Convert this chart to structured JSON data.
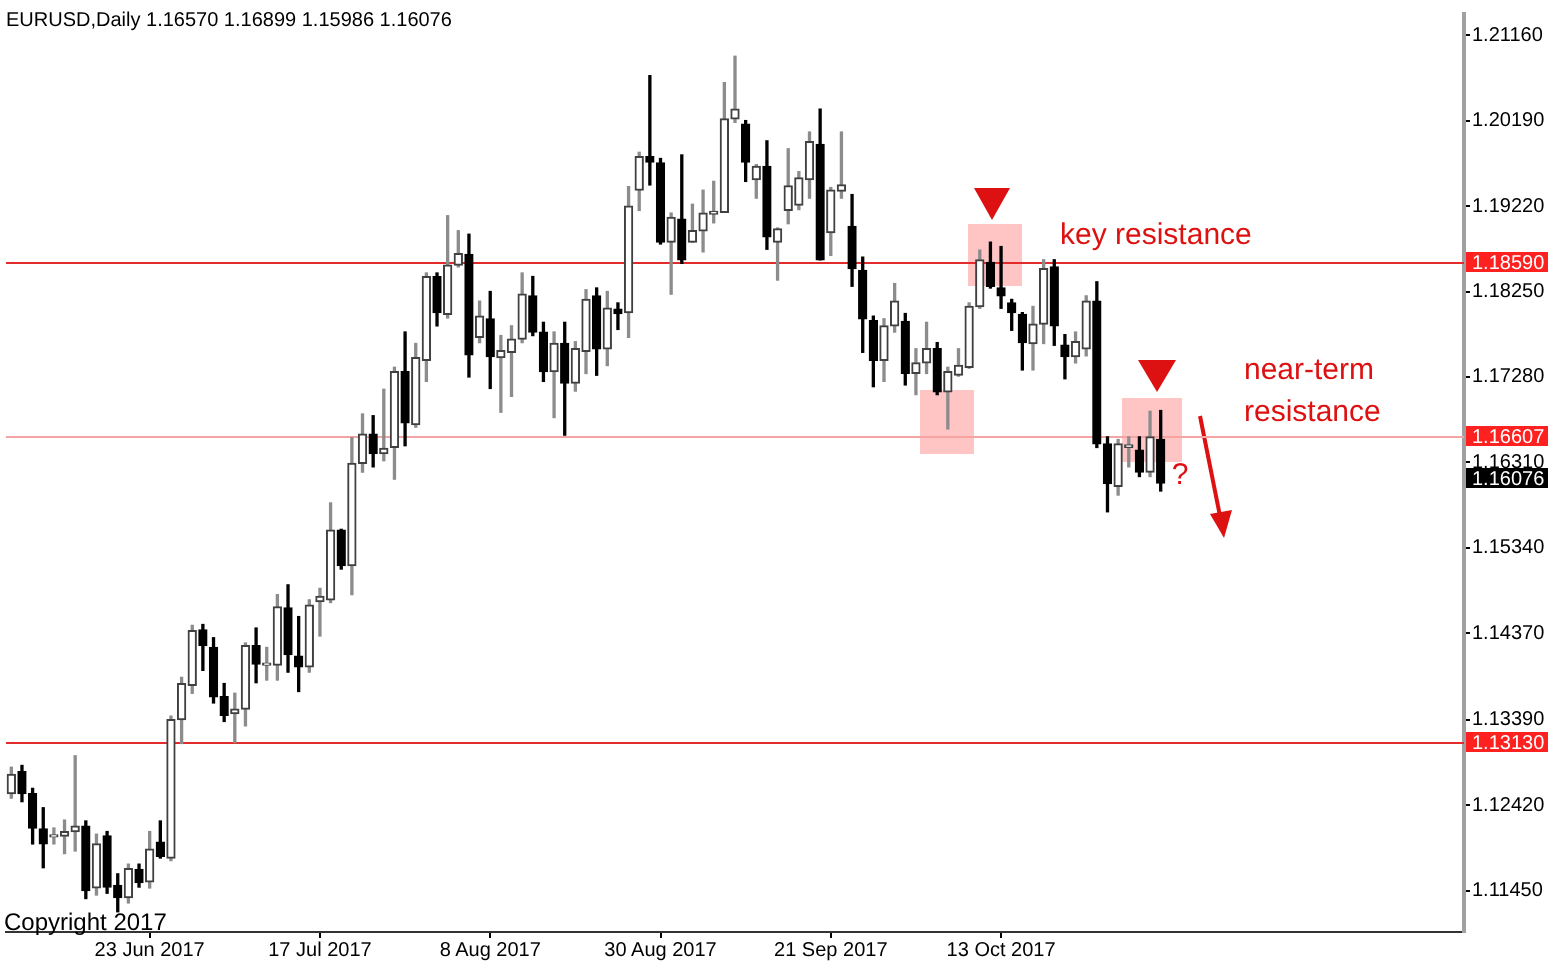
{
  "chart_data": {
    "type": "candlestick",
    "title": "EURUSD,Daily 1.16570 1.16899 1.15986 1.16076",
    "categories": [
      null,
      null,
      null,
      null,
      null,
      null,
      null,
      null,
      null,
      null,
      null,
      null,
      null,
      "23 Jun 2017",
      null,
      null,
      null,
      null,
      null,
      null,
      null,
      null,
      null,
      null,
      null,
      null,
      null,
      null,
      null,
      "17 Jul 2017",
      null,
      null,
      null,
      null,
      null,
      null,
      null,
      null,
      null,
      null,
      null,
      null,
      null,
      null,
      null,
      "8 Aug 2017",
      null,
      null,
      null,
      null,
      null,
      null,
      null,
      null,
      null,
      null,
      null,
      null,
      null,
      null,
      null,
      "30 Aug 2017",
      null,
      null,
      null,
      null,
      null,
      null,
      null,
      null,
      null,
      null,
      null,
      null,
      null,
      null,
      null,
      "21 Sep 2017",
      null,
      null,
      null,
      null,
      null,
      null,
      null,
      null,
      null,
      null,
      null,
      null,
      null,
      null,
      null,
      "13 Oct 2017",
      null,
      null,
      null,
      null,
      null,
      null,
      null,
      null,
      null,
      null,
      null,
      null,
      null,
      null,
      null,
      null,
      null,
      null,
      null,
      null,
      null,
      null,
      null,
      null,
      null,
      null,
      null,
      null,
      null,
      null,
      null,
      null,
      null,
      null,
      null,
      null,
      null,
      null,
      null,
      null,
      null,
      null,
      null
    ],
    "ohlc": [
      [
        1.1255,
        1.1285,
        1.125,
        1.1277
      ],
      [
        1.128,
        1.1287,
        1.1246,
        1.1255
      ],
      [
        1.1255,
        1.1261,
        1.1198,
        1.1216
      ],
      [
        1.1215,
        1.1239,
        1.1171,
        1.1198
      ],
      [
        1.1206,
        1.1216,
        1.1198,
        1.1207
      ],
      [
        1.1207,
        1.1225,
        1.1187,
        1.1212
      ],
      [
        1.1212,
        1.1298,
        1.119,
        1.1218
      ],
      [
        1.1218,
        1.1224,
        1.1136,
        1.1145
      ],
      [
        1.1148,
        1.1209,
        1.114,
        1.1198
      ],
      [
        1.1207,
        1.1212,
        1.1142,
        1.1149
      ],
      [
        1.1151,
        1.1164,
        1.1121,
        1.1137
      ],
      [
        1.1137,
        1.1175,
        1.1131,
        1.117
      ],
      [
        1.1169,
        1.1175,
        1.1149,
        1.1154
      ],
      [
        1.1155,
        1.1212,
        1.1148,
        1.1192
      ],
      [
        1.12,
        1.1224,
        1.1182,
        1.1184
      ],
      [
        1.1182,
        1.1343,
        1.1179,
        1.1339
      ],
      [
        1.1339,
        1.1387,
        1.1312,
        1.138
      ],
      [
        1.1378,
        1.1446,
        1.1369,
        1.144
      ],
      [
        1.1441,
        1.1447,
        1.1395,
        1.1423
      ],
      [
        1.1421,
        1.1432,
        1.1358,
        1.1365
      ],
      [
        1.1365,
        1.138,
        1.1337,
        1.1344
      ],
      [
        1.1346,
        1.1369,
        1.1313,
        1.1351
      ],
      [
        1.1351,
        1.1426,
        1.1332,
        1.1423
      ],
      [
        1.1423,
        1.1443,
        1.1381,
        1.1402
      ],
      [
        1.1401,
        1.1421,
        1.1384,
        1.1402
      ],
      [
        1.1401,
        1.1481,
        1.1384,
        1.1467
      ],
      [
        1.1466,
        1.1492,
        1.1393,
        1.1413
      ],
      [
        1.1411,
        1.1456,
        1.1371,
        1.1399
      ],
      [
        1.1399,
        1.1475,
        1.1393,
        1.1469
      ],
      [
        1.1473,
        1.1488,
        1.1434,
        1.1479
      ],
      [
        1.1475,
        1.1585,
        1.1472,
        1.1554
      ],
      [
        1.1554,
        1.1555,
        1.151,
        1.1514
      ],
      [
        1.1514,
        1.1659,
        1.1481,
        1.163
      ],
      [
        1.163,
        1.1686,
        1.162,
        1.1663
      ],
      [
        1.1663,
        1.1684,
        1.1626,
        1.1641
      ],
      [
        1.1641,
        1.1714,
        1.1633,
        1.1647
      ],
      [
        1.1648,
        1.1739,
        1.1612,
        1.1734
      ],
      [
        1.1734,
        1.1779,
        1.165,
        1.1676
      ],
      [
        1.1674,
        1.1766,
        1.1671,
        1.175
      ],
      [
        1.1747,
        1.1846,
        1.1723,
        1.1842
      ],
      [
        1.1842,
        1.1846,
        1.1786,
        1.1801
      ],
      [
        1.1799,
        1.1911,
        1.1795,
        1.1855
      ],
      [
        1.1855,
        1.1894,
        1.1853,
        1.1868
      ],
      [
        1.1867,
        1.189,
        1.1728,
        1.1753
      ],
      [
        1.1773,
        1.1814,
        1.1767,
        1.1797
      ],
      [
        1.1794,
        1.1825,
        1.1715,
        1.1751
      ],
      [
        1.175,
        1.1775,
        1.1688,
        1.1758
      ],
      [
        1.1756,
        1.1786,
        1.1706,
        1.1771
      ],
      [
        1.1771,
        1.1846,
        1.1767,
        1.1822
      ],
      [
        1.182,
        1.1842,
        1.1775,
        1.1779
      ],
      [
        1.1779,
        1.179,
        1.1723,
        1.1734
      ],
      [
        1.1734,
        1.1779,
        1.1682,
        1.1766
      ],
      [
        1.1766,
        1.179,
        1.1662,
        1.1721
      ],
      [
        1.1721,
        1.1768,
        1.1712,
        1.176
      ],
      [
        1.1757,
        1.1827,
        1.1732,
        1.1816
      ],
      [
        1.182,
        1.1829,
        1.173,
        1.176
      ],
      [
        1.176,
        1.1825,
        1.1741,
        1.1806
      ],
      [
        1.1805,
        1.1812,
        1.1782,
        1.18
      ],
      [
        1.1801,
        1.1944,
        1.1773,
        1.1922
      ],
      [
        1.194,
        1.1983,
        1.1917,
        1.1978
      ],
      [
        1.1978,
        1.207,
        1.1946,
        1.1972
      ],
      [
        1.1971,
        1.1976,
        1.1879,
        1.1881
      ],
      [
        1.1881,
        1.1914,
        1.1822,
        1.1909
      ],
      [
        1.1907,
        1.198,
        1.1857,
        1.1861
      ],
      [
        1.1881,
        1.1924,
        1.1881,
        1.1894
      ],
      [
        1.1894,
        1.194,
        1.187,
        1.1914
      ],
      [
        1.1913,
        1.195,
        1.1903,
        1.1916
      ],
      [
        1.1915,
        1.2062,
        1.1915,
        1.2021
      ],
      [
        1.2021,
        1.2092,
        1.2017,
        1.2032
      ],
      [
        1.2015,
        1.2019,
        1.195,
        1.1972
      ],
      [
        1.1952,
        1.1969,
        1.1931,
        1.1967
      ],
      [
        1.1967,
        1.1996,
        1.1873,
        1.1887
      ],
      [
        1.1881,
        1.1897,
        1.1838,
        1.1896
      ],
      [
        1.1917,
        1.1987,
        1.1902,
        1.1945
      ],
      [
        1.1923,
        1.1961,
        1.1918,
        1.1954
      ],
      [
        1.1952,
        1.2006,
        1.1931,
        1.1995
      ],
      [
        1.1992,
        1.2032,
        1.1861,
        1.1861
      ],
      [
        1.1892,
        1.1943,
        1.1866,
        1.194
      ],
      [
        1.1939,
        1.2006,
        1.1931,
        1.1946
      ],
      [
        1.1899,
        1.1935,
        1.1831,
        1.1851
      ],
      [
        1.1849,
        1.1864,
        1.1756,
        1.1794
      ],
      [
        1.1792,
        1.1797,
        1.1717,
        1.1747
      ],
      [
        1.1747,
        1.1794,
        1.1723,
        1.1786
      ],
      [
        1.1786,
        1.1834,
        1.1779,
        1.1814
      ],
      [
        1.1791,
        1.18,
        1.1719,
        1.1732
      ],
      [
        1.1732,
        1.176,
        1.1708,
        1.1744
      ],
      [
        1.1744,
        1.179,
        1.1732,
        1.176
      ],
      [
        1.176,
        1.1767,
        1.1708,
        1.1711
      ],
      [
        1.1711,
        1.1739,
        1.1669,
        1.1734
      ],
      [
        1.173,
        1.176,
        1.1729,
        1.1741
      ],
      [
        1.1739,
        1.1812,
        1.1738,
        1.1808
      ],
      [
        1.1808,
        1.1872,
        1.1806,
        1.1861
      ],
      [
        1.1858,
        1.1881,
        1.1829,
        1.1831
      ],
      [
        1.1829,
        1.1876,
        1.1806,
        1.182
      ],
      [
        1.1812,
        1.1816,
        1.1781,
        1.1801
      ],
      [
        1.1799,
        1.1801,
        1.1736,
        1.1767
      ],
      [
        1.1766,
        1.1808,
        1.1736,
        1.1788
      ],
      [
        1.1788,
        1.1861,
        1.1766,
        1.1851
      ],
      [
        1.1853,
        1.1861,
        1.1764,
        1.1786
      ],
      [
        1.1764,
        1.1776,
        1.1726,
        1.1751
      ],
      [
        1.1751,
        1.1779,
        1.1744,
        1.1768
      ],
      [
        1.176,
        1.182,
        1.1752,
        1.1814
      ],
      [
        1.1814,
        1.1836,
        1.1648,
        1.1652
      ],
      [
        1.1652,
        1.166,
        1.1575,
        1.1607
      ],
      [
        1.1604,
        1.1657,
        1.1594,
        1.1652
      ],
      [
        1.1648,
        1.166,
        1.1626,
        1.1651
      ],
      [
        1.1645,
        1.166,
        1.1615,
        1.162
      ],
      [
        1.162,
        1.1689,
        1.1615,
        1.166
      ],
      [
        1.1657,
        1.16899,
        1.15986,
        1.16076
      ],
      null,
      null,
      null,
      null,
      null,
      null,
      null,
      null,
      null,
      null,
      null,
      null,
      null,
      null,
      null,
      null,
      null,
      null,
      null,
      null,
      null,
      null,
      null,
      null,
      null,
      null,
      null,
      null
    ],
    "colors": [
      "#404040",
      "#000000",
      "#000000",
      "#000000",
      "#404040",
      "#404040",
      "#404040",
      "#000000",
      "#404040",
      "#000000",
      "#000000",
      "#404040",
      "#000000",
      "#404040",
      "#000000",
      "#404040",
      "#404040",
      "#404040",
      "#000000",
      "#000000",
      "#000000",
      "#404040",
      "#404040",
      "#000000",
      "#404040",
      "#404040",
      "#000000",
      "#000000",
      "#404040",
      "#404040",
      "#404040",
      "#000000",
      "#404040",
      "#404040",
      "#000000",
      "#404040",
      "#404040",
      "#000000",
      "#404040",
      "#404040",
      "#000000",
      "#404040",
      "#404040",
      "#000000",
      "#404040",
      "#000000",
      "#404040",
      "#404040",
      "#404040",
      "#000000",
      "#000000",
      "#404040",
      "#000000",
      "#404040",
      "#404040",
      "#000000",
      "#404040",
      "#000000",
      "#404040",
      "#404040",
      "#000000",
      "#000000",
      "#404040",
      "#000000",
      "#404040",
      "#404040",
      "#404040",
      "#404040",
      "#404040",
      "#000000",
      "#404040",
      "#000000",
      "#404040",
      "#404040",
      "#404040",
      "#404040",
      "#000000",
      "#404040",
      "#404040",
      "#000000",
      "#000000",
      "#000000",
      "#404040",
      "#404040",
      "#000000",
      "#404040",
      "#404040",
      "#000000",
      "#404040",
      "#404040",
      "#404040",
      "#404040",
      "#000000",
      "#000000",
      "#000000",
      "#000000",
      "#404040",
      "#404040",
      "#000000",
      "#000000",
      "#404040",
      "#404040",
      "#000000",
      "#000000",
      "#404040",
      "#404040",
      "#000000",
      "#404040",
      "#000000",
      null,
      null,
      null,
      null,
      null,
      null,
      null,
      null,
      null,
      null,
      null,
      null,
      null,
      null,
      null,
      null,
      null,
      null,
      null,
      null,
      null,
      null,
      null,
      null,
      null,
      null,
      null,
      null
    ],
    "ylim": [
      1.1098,
      1.214
    ],
    "yticks": [
      {
        "value": 1.1145,
        "label": "1.11450"
      },
      {
        "value": 1.1242,
        "label": "1.12420"
      },
      {
        "value": 1.1339,
        "label": "1.13390"
      },
      {
        "value": 1.1437,
        "label": "1.14370"
      },
      {
        "value": 1.1534,
        "label": "1.15340"
      },
      {
        "value": 1.1631,
        "label": "1.16310"
      },
      {
        "value": 1.1728,
        "label": "1.17280"
      },
      {
        "value": 1.1825,
        "label": "1.18250"
      },
      {
        "value": 1.1922,
        "label": "1.19220"
      },
      {
        "value": 1.2019,
        "label": "1.20190"
      },
      {
        "value": 1.2116,
        "label": "1.21160"
      }
    ],
    "ref_lines": [
      {
        "axis": "y",
        "value": 1.1859,
        "label": "1.18590",
        "color": "#e32b2b"
      },
      {
        "axis": "y",
        "value": 1.16607,
        "label": "1.16607",
        "color": "#f5a3a3"
      },
      {
        "axis": "y",
        "value": 1.1313,
        "label": "1.13130",
        "color": "#e32b2b"
      }
    ],
    "annotations": [
      {
        "text": "key resistance",
        "y": 1.1859
      },
      {
        "text": "near-term resistance",
        "y": 1.16607
      },
      "?",
      "1.16076",
      "Copyright 2017"
    ]
  }
}
